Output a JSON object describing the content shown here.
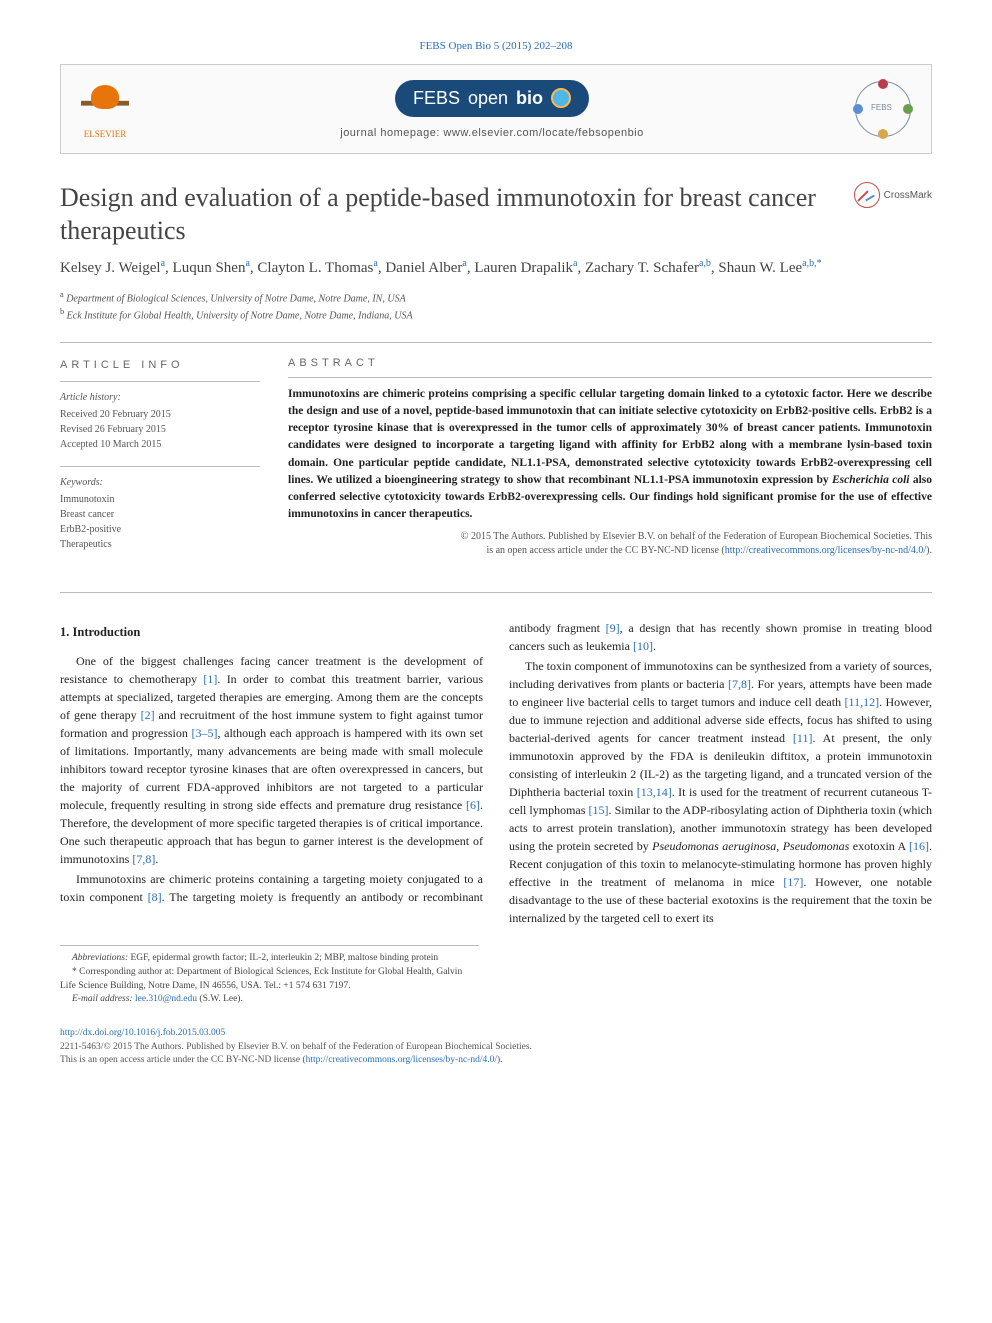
{
  "journal_ref": "FEBS Open Bio 5 (2015) 202–208",
  "publisher": "ELSEVIER",
  "journal_badge": {
    "prefix": "FEBS",
    "mid": "open",
    "suffix": "bio"
  },
  "homepage_label": "journal homepage: www.elsevier.com/locate/febsopenbio",
  "crossmark": "CrossMark",
  "title": "Design and evaluation of a peptide-based immunotoxin for breast cancer therapeutics",
  "authors_html": "Kelsey J. Weigel|a|, Luqun Shen|a|, Clayton L. Thomas|a|, Daniel Alber|a|, Lauren Drapalik|a|, Zachary T. Schafer|a,b|, Shaun W. Lee|a,b,*|",
  "authors": [
    {
      "name": "Kelsey J. Weigel",
      "aff": "a"
    },
    {
      "name": "Luqun Shen",
      "aff": "a"
    },
    {
      "name": "Clayton L. Thomas",
      "aff": "a"
    },
    {
      "name": "Daniel Alber",
      "aff": "a"
    },
    {
      "name": "Lauren Drapalik",
      "aff": "a"
    },
    {
      "name": "Zachary T. Schafer",
      "aff": "a,b"
    },
    {
      "name": "Shaun W. Lee",
      "aff": "a,b,*"
    }
  ],
  "affiliations": [
    {
      "sup": "a",
      "text": "Department of Biological Sciences, University of Notre Dame, Notre Dame, IN, USA"
    },
    {
      "sup": "b",
      "text": "Eck Institute for Global Health, University of Notre Dame, Notre Dame, Indiana, USA"
    }
  ],
  "info_heading": "ARTICLE INFO",
  "history_label": "Article history:",
  "history": [
    "Received 20 February 2015",
    "Revised 26 February 2015",
    "Accepted 10 March 2015"
  ],
  "keywords_label": "Keywords:",
  "keywords": [
    "Immunotoxin",
    "Breast cancer",
    "ErbB2-positive",
    "Therapeutics"
  ],
  "abstract_heading": "ABSTRACT",
  "abstract": "Immunotoxins are chimeric proteins comprising a specific cellular targeting domain linked to a cytotoxic factor. Here we describe the design and use of a novel, peptide-based immunotoxin that can initiate selective cytotoxicity on ErbB2-positive cells. ErbB2 is a receptor tyrosine kinase that is overexpressed in the tumor cells of approximately 30% of breast cancer patients. Immunotoxin candidates were designed to incorporate a targeting ligand with affinity for ErbB2 along with a membrane lysin-based toxin domain. One particular peptide candidate, NL1.1-PSA, demonstrated selective cytotoxicity towards ErbB2-overexpressing cell lines. We utilized a bioengineering strategy to show that recombinant NL1.1-PSA immunotoxin expression by Escherichia coli also conferred selective cytotoxicity towards ErbB2-overexpressing cells. Our findings hold significant promise for the use of effective immunotoxins in cancer therapeutics.",
  "copyright_line1": "© 2015 The Authors. Published by Elsevier B.V. on behalf of the Federation of European Biochemical Societies. This",
  "copyright_line2": "is an open access article under the CC BY-NC-ND license (",
  "license_url": "http://creativecommons.org/licenses/by-nc-nd/4.0/",
  "copyright_line3": ").",
  "section1_heading": "1. Introduction",
  "para1": "One of the biggest challenges facing cancer treatment is the development of resistance to chemotherapy [1]. In order to combat this treatment barrier, various attempts at specialized, targeted therapies are emerging. Among them are the concepts of gene therapy [2] and recruitment of the host immune system to fight against tumor formation and progression [3–5], although each approach is hampered with its own set of limitations. Importantly, many advancements are being made with small molecule inhibitors toward receptor tyrosine kinases that are often overexpressed in cancers, but the majority of current FDA-approved inhibitors are not targeted to a particular molecule, frequently resulting in strong side effects and premature drug resistance [6]. Therefore, the development of more specific targeted therapies is of critical importance. One such therapeutic approach that has begun to garner interest is the development of immunotoxins [7,8].",
  "para2": "Immunotoxins are chimeric proteins containing a targeting moiety conjugated to a toxin component [8]. The targeting moiety is frequently an antibody or recombinant antibody fragment [9], a design that has recently shown promise in treating blood cancers such as leukemia [10].",
  "para3": "The toxin component of immunotoxins can be synthesized from a variety of sources, including derivatives from plants or bacteria [7,8]. For years, attempts have been made to engineer live bacterial cells to target tumors and induce cell death [11,12]. However, due to immune rejection and additional adverse side effects, focus has shifted to using bacterial-derived agents for cancer treatment instead [11]. At present, the only immunotoxin approved by the FDA is denileukin diftitox, a protein immunotoxin consisting of interleukin 2 (IL-2) as the targeting ligand, and a truncated version of the Diphtheria bacterial toxin [13,14]. It is used for the treatment of recurrent cutaneous T-cell lymphomas [15]. Similar to the ADP-ribosylating action of Diphtheria toxin (which acts to arrest protein translation), another immunotoxin strategy has been developed using the protein secreted by Pseudomonas aeruginosa, Pseudomonas exotoxin A [16]. Recent conjugation of this toxin to melanocyte-stimulating hormone has proven highly effective in the treatment of melanoma in mice [17]. However, one notable disadvantage to the use of these bacterial exotoxins is the requirement that the toxin be internalized by the targeted cell to exert its",
  "abbrev_label": "Abbreviations:",
  "abbrev_text": " EGF, epidermal growth factor; IL-2, interleukin 2; MBP, maltose binding protein",
  "corr_label": "* Corresponding author at:",
  "corr_text": " Department of Biological Sciences, Eck Institute for Global Health, Galvin Life Science Building, Notre Dame, IN 46556, USA. Tel.: +1 574 631 7197.",
  "email_label": "E-mail address:",
  "email": " lee.310@nd.edu",
  "email_suffix": " (S.W. Lee).",
  "doi": "http://dx.doi.org/10.1016/j.fob.2015.03.005",
  "issn_line": "2211-5463/© 2015 The Authors. Published by Elsevier B.V. on behalf of the Federation of European Biochemical Societies.",
  "oa_line": "This is an open access article under the CC BY-NC-ND license (",
  "colors": {
    "link": "#2a6ebb",
    "elsevier": "#e8750b",
    "febs_bg": "#1a4a7a",
    "text": "#333333",
    "rule": "#bbbbbb"
  }
}
